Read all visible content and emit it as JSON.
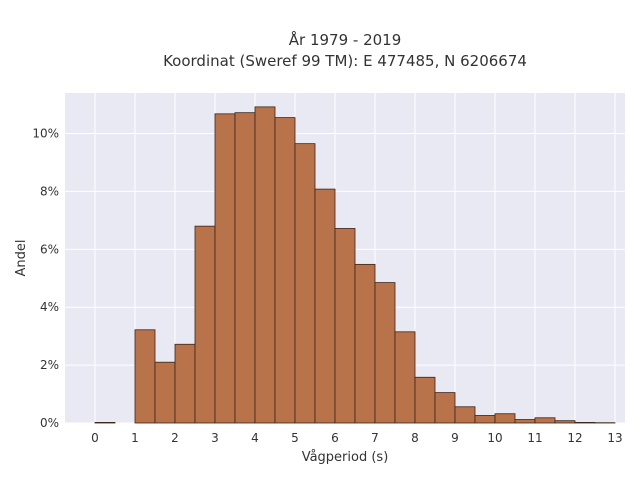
{
  "chart_data": {
    "type": "bar",
    "title": "År 1979 - 2019",
    "subtitle": "Koordinat (Sweref 99 TM): E 477485, N 6206674",
    "xlabel": "Vågperiod (s)",
    "ylabel": "Andel",
    "bin_width": 0.5,
    "bin_starts": [
      0,
      0.5,
      1,
      1.5,
      2,
      2.5,
      3,
      3.5,
      4,
      4.5,
      5,
      5.5,
      6,
      6.5,
      7,
      7.5,
      8,
      8.5,
      9,
      9.5,
      10,
      10.5,
      11,
      11.5,
      12,
      12.5
    ],
    "values": [
      0.02,
      0,
      3.22,
      2.1,
      2.72,
      6.8,
      10.68,
      10.72,
      10.92,
      10.55,
      9.65,
      8.08,
      6.72,
      5.48,
      4.85,
      3.15,
      1.58,
      1.05,
      0.56,
      0.26,
      0.32,
      0.12,
      0.18,
      0.08,
      0.02,
      0.01
    ],
    "xlim": [
      -0.75,
      13.25
    ],
    "ylim": [
      0,
      11.4
    ],
    "x_ticks": [
      "0",
      "1",
      "2",
      "3",
      "4",
      "5",
      "6",
      "7",
      "8",
      "9",
      "10",
      "11",
      "12",
      "13"
    ],
    "y_ticks": [
      "0%",
      "2%",
      "4%",
      "6%",
      "8%",
      "10%"
    ],
    "bar_color": "#b9734a",
    "bar_edge_color": "#3d2418",
    "plot_bg": "#e8e9f2",
    "grid": true
  }
}
